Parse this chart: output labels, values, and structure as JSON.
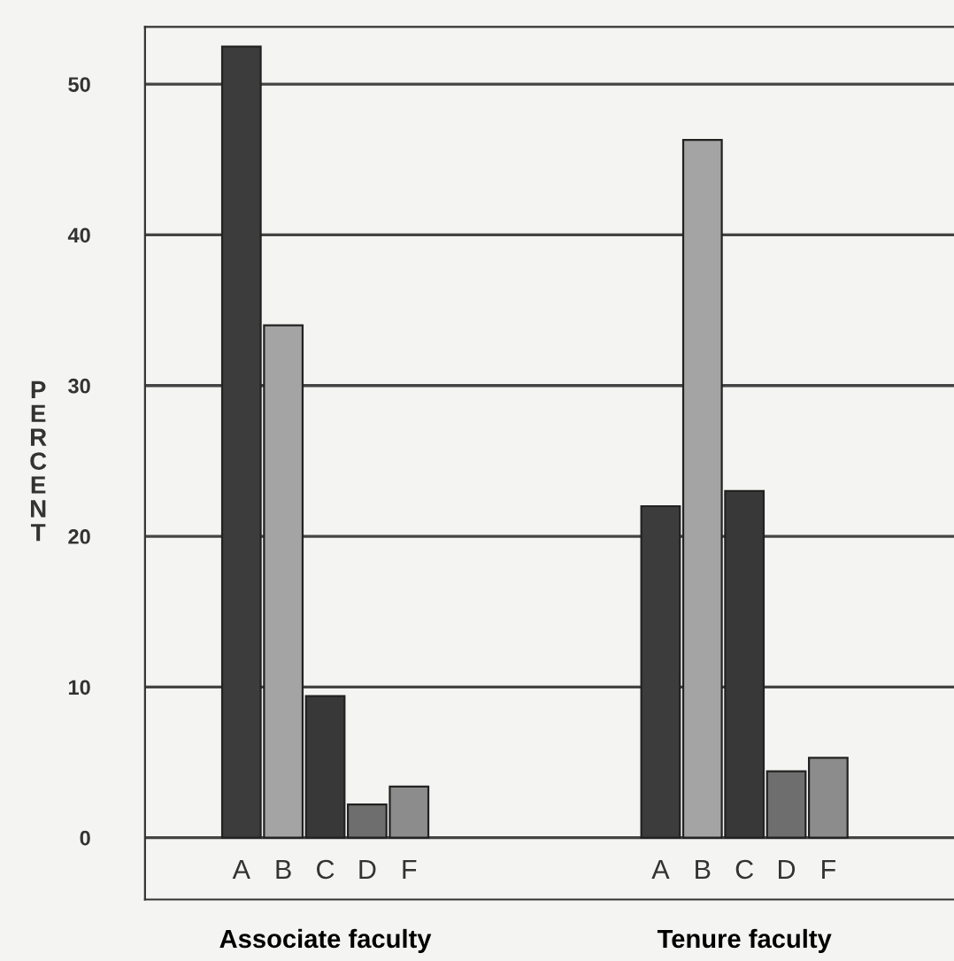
{
  "chart_data": {
    "type": "bar",
    "ylabel": "PERCENT",
    "categories": [
      "Associate faculty",
      "Tenure faculty"
    ],
    "series": [
      {
        "name": "A",
        "color": "#3c3c3c",
        "values": [
          52.5,
          22
        ]
      },
      {
        "name": "B",
        "color": "#a4a4a4",
        "values": [
          34,
          46.3
        ]
      },
      {
        "name": "C",
        "color": "#383838",
        "values": [
          9.4,
          23
        ]
      },
      {
        "name": "D",
        "color": "#6e6e6e",
        "values": [
          2.2,
          4.4
        ]
      },
      {
        "name": "F",
        "color": "#8c8c8c",
        "values": [
          3.4,
          5.3
        ]
      }
    ],
    "ylim": [
      -4.1,
      53.8
    ],
    "yticks": [
      0,
      10,
      20,
      30,
      40,
      50
    ],
    "grid": "y",
    "legend": false
  }
}
